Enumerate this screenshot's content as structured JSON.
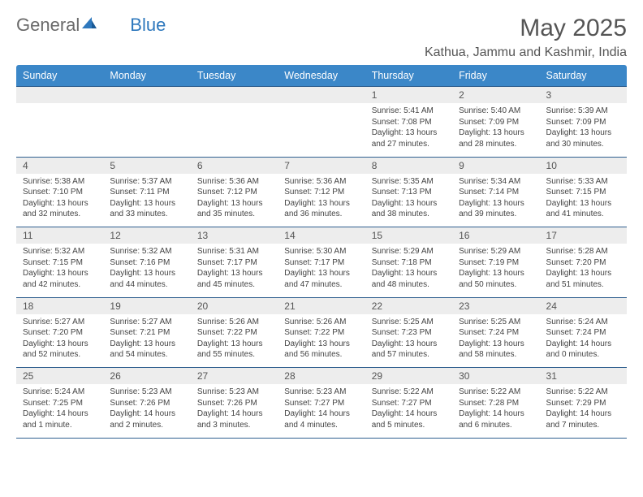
{
  "logo": {
    "word1": "General",
    "word2": "Blue"
  },
  "title": "May 2025",
  "location": "Kathua, Jammu and Kashmir, India",
  "colors": {
    "header_bg": "#3b87c8",
    "header_text": "#ffffff",
    "daynum_bg": "#ededed",
    "rule": "#2f5f8f",
    "logo_gray": "#6a6a6a",
    "logo_blue": "#2e78bd"
  },
  "weekdays": [
    "Sunday",
    "Monday",
    "Tuesday",
    "Wednesday",
    "Thursday",
    "Friday",
    "Saturday"
  ],
  "weeks": [
    {
      "nums": [
        "",
        "",
        "",
        "",
        "1",
        "2",
        "3"
      ],
      "cells": [
        null,
        null,
        null,
        null,
        {
          "sunrise": "5:41 AM",
          "sunset": "7:08 PM",
          "daylight": "13 hours and 27 minutes."
        },
        {
          "sunrise": "5:40 AM",
          "sunset": "7:09 PM",
          "daylight": "13 hours and 28 minutes."
        },
        {
          "sunrise": "5:39 AM",
          "sunset": "7:09 PM",
          "daylight": "13 hours and 30 minutes."
        }
      ]
    },
    {
      "nums": [
        "4",
        "5",
        "6",
        "7",
        "8",
        "9",
        "10"
      ],
      "cells": [
        {
          "sunrise": "5:38 AM",
          "sunset": "7:10 PM",
          "daylight": "13 hours and 32 minutes."
        },
        {
          "sunrise": "5:37 AM",
          "sunset": "7:11 PM",
          "daylight": "13 hours and 33 minutes."
        },
        {
          "sunrise": "5:36 AM",
          "sunset": "7:12 PM",
          "daylight": "13 hours and 35 minutes."
        },
        {
          "sunrise": "5:36 AM",
          "sunset": "7:12 PM",
          "daylight": "13 hours and 36 minutes."
        },
        {
          "sunrise": "5:35 AM",
          "sunset": "7:13 PM",
          "daylight": "13 hours and 38 minutes."
        },
        {
          "sunrise": "5:34 AM",
          "sunset": "7:14 PM",
          "daylight": "13 hours and 39 minutes."
        },
        {
          "sunrise": "5:33 AM",
          "sunset": "7:15 PM",
          "daylight": "13 hours and 41 minutes."
        }
      ]
    },
    {
      "nums": [
        "11",
        "12",
        "13",
        "14",
        "15",
        "16",
        "17"
      ],
      "cells": [
        {
          "sunrise": "5:32 AM",
          "sunset": "7:15 PM",
          "daylight": "13 hours and 42 minutes."
        },
        {
          "sunrise": "5:32 AM",
          "sunset": "7:16 PM",
          "daylight": "13 hours and 44 minutes."
        },
        {
          "sunrise": "5:31 AM",
          "sunset": "7:17 PM",
          "daylight": "13 hours and 45 minutes."
        },
        {
          "sunrise": "5:30 AM",
          "sunset": "7:17 PM",
          "daylight": "13 hours and 47 minutes."
        },
        {
          "sunrise": "5:29 AM",
          "sunset": "7:18 PM",
          "daylight": "13 hours and 48 minutes."
        },
        {
          "sunrise": "5:29 AM",
          "sunset": "7:19 PM",
          "daylight": "13 hours and 50 minutes."
        },
        {
          "sunrise": "5:28 AM",
          "sunset": "7:20 PM",
          "daylight": "13 hours and 51 minutes."
        }
      ]
    },
    {
      "nums": [
        "18",
        "19",
        "20",
        "21",
        "22",
        "23",
        "24"
      ],
      "cells": [
        {
          "sunrise": "5:27 AM",
          "sunset": "7:20 PM",
          "daylight": "13 hours and 52 minutes."
        },
        {
          "sunrise": "5:27 AM",
          "sunset": "7:21 PM",
          "daylight": "13 hours and 54 minutes."
        },
        {
          "sunrise": "5:26 AM",
          "sunset": "7:22 PM",
          "daylight": "13 hours and 55 minutes."
        },
        {
          "sunrise": "5:26 AM",
          "sunset": "7:22 PM",
          "daylight": "13 hours and 56 minutes."
        },
        {
          "sunrise": "5:25 AM",
          "sunset": "7:23 PM",
          "daylight": "13 hours and 57 minutes."
        },
        {
          "sunrise": "5:25 AM",
          "sunset": "7:24 PM",
          "daylight": "13 hours and 58 minutes."
        },
        {
          "sunrise": "5:24 AM",
          "sunset": "7:24 PM",
          "daylight": "14 hours and 0 minutes."
        }
      ]
    },
    {
      "nums": [
        "25",
        "26",
        "27",
        "28",
        "29",
        "30",
        "31"
      ],
      "cells": [
        {
          "sunrise": "5:24 AM",
          "sunset": "7:25 PM",
          "daylight": "14 hours and 1 minute."
        },
        {
          "sunrise": "5:23 AM",
          "sunset": "7:26 PM",
          "daylight": "14 hours and 2 minutes."
        },
        {
          "sunrise": "5:23 AM",
          "sunset": "7:26 PM",
          "daylight": "14 hours and 3 minutes."
        },
        {
          "sunrise": "5:23 AM",
          "sunset": "7:27 PM",
          "daylight": "14 hours and 4 minutes."
        },
        {
          "sunrise": "5:22 AM",
          "sunset": "7:27 PM",
          "daylight": "14 hours and 5 minutes."
        },
        {
          "sunrise": "5:22 AM",
          "sunset": "7:28 PM",
          "daylight": "14 hours and 6 minutes."
        },
        {
          "sunrise": "5:22 AM",
          "sunset": "7:29 PM",
          "daylight": "14 hours and 7 minutes."
        }
      ]
    }
  ],
  "labels": {
    "sunrise": "Sunrise: ",
    "sunset": "Sunset: ",
    "daylight": "Daylight: "
  }
}
